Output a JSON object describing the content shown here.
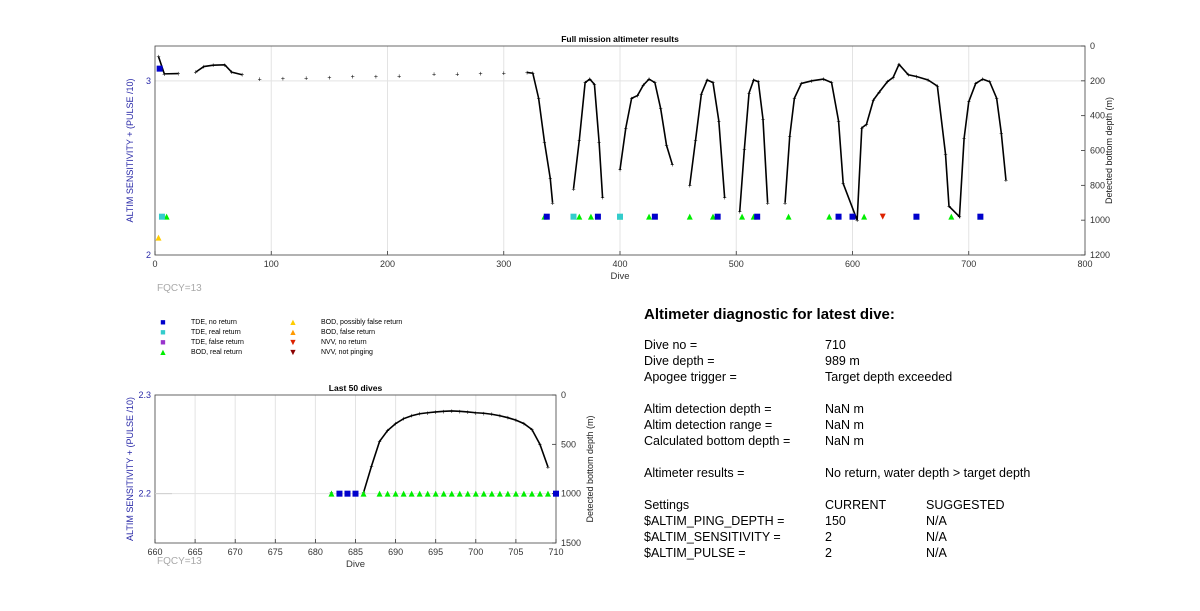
{
  "chart_data": [
    {
      "type": "scatter",
      "title": "Full mission altimeter results",
      "xlabel": "Dive",
      "ylabel_left": "ALTIM SENSITIVITY + (PULSE /10)",
      "ylabel_right": "Detected bottom depth (m)",
      "xlim": [
        0,
        800
      ],
      "ylim_left": [
        2,
        3.2
      ],
      "ylim_right": [
        0,
        1200
      ],
      "right_axis_inverted": true,
      "x_ticks": [
        "0",
        "100",
        "200",
        "300",
        "400",
        "500",
        "600",
        "700",
        "800"
      ],
      "left_ticks": [
        "2",
        "3"
      ],
      "right_ticks": [
        "0",
        "200",
        "400",
        "600",
        "800",
        "1000",
        "1200"
      ],
      "grid": true,
      "annotation": "FQCY=13",
      "series": [
        {
          "name": "Detected bottom depth",
          "color": "#000000",
          "points": [
            [
              3,
              60
            ],
            [
              8,
              160
            ],
            [
              20,
              158
            ],
            [
              35,
              150
            ],
            [
              42,
              118
            ],
            [
              50,
              110
            ],
            [
              60,
              108
            ],
            [
              66,
              150
            ],
            [
              75,
              165
            ],
            [
              90,
              190
            ],
            [
              110,
              188
            ],
            [
              130,
              185
            ],
            [
              150,
              182
            ],
            [
              170,
              176
            ],
            [
              190,
              176
            ],
            [
              210,
              172
            ],
            [
              240,
              162
            ],
            [
              260,
              160
            ],
            [
              280,
              158
            ],
            [
              300,
              156
            ],
            [
              320,
              152
            ],
            [
              325,
              156
            ],
            [
              330,
              300
            ],
            [
              335,
              550
            ],
            [
              340,
              760
            ],
            [
              342,
              900
            ],
            [
              360,
              820
            ],
            [
              365,
              540
            ],
            [
              370,
              210
            ],
            [
              374,
              190
            ],
            [
              378,
              220
            ],
            [
              382,
              550
            ],
            [
              385,
              870
            ],
            [
              400,
              710
            ],
            [
              405,
              470
            ],
            [
              410,
              300
            ],
            [
              415,
              285
            ],
            [
              420,
              225
            ],
            [
              425,
              190
            ],
            [
              430,
              210
            ],
            [
              435,
              360
            ],
            [
              440,
              570
            ],
            [
              445,
              680
            ],
            [
              460,
              800
            ],
            [
              465,
              540
            ],
            [
              470,
              275
            ],
            [
              475,
              195
            ],
            [
              480,
              210
            ],
            [
              485,
              430
            ],
            [
              490,
              870
            ],
            [
              503,
              950
            ],
            [
              507,
              590
            ],
            [
              511,
              270
            ],
            [
              515,
              195
            ],
            [
              519,
              205
            ],
            [
              523,
              420
            ],
            [
              527,
              900
            ],
            [
              542,
              900
            ],
            [
              546,
              520
            ],
            [
              550,
              300
            ],
            [
              556,
              215
            ],
            [
              565,
              200
            ],
            [
              575,
              190
            ],
            [
              582,
              210
            ],
            [
              588,
              430
            ],
            [
              592,
              790
            ],
            [
              604,
              1000
            ],
            [
              608,
              470
            ],
            [
              612,
              450
            ],
            [
              618,
              310
            ],
            [
              623,
              265
            ],
            [
              630,
              205
            ],
            [
              635,
              180
            ],
            [
              640,
              105
            ],
            [
              648,
              165
            ],
            [
              655,
              175
            ],
            [
              665,
              195
            ],
            [
              673,
              230
            ],
            [
              680,
              620
            ],
            [
              683,
              920
            ],
            [
              692,
              980
            ],
            [
              696,
              530
            ],
            [
              700,
              320
            ],
            [
              706,
              215
            ],
            [
              712,
              190
            ],
            [
              718,
              205
            ],
            [
              724,
              300
            ],
            [
              728,
              500
            ],
            [
              732,
              770
            ]
          ]
        },
        {
          "name": "BOD, real return",
          "color": "#00ee00",
          "points": [
            [
              10,
              2.22
            ],
            [
              335,
              2.22
            ],
            [
              365,
              2.22
            ],
            [
              375,
              2.22
            ],
            [
              400,
              2.22
            ],
            [
              425,
              2.22
            ],
            [
              460,
              2.22
            ],
            [
              480,
              2.22
            ],
            [
              505,
              2.22
            ],
            [
              515,
              2.22
            ],
            [
              545,
              2.22
            ],
            [
              580,
              2.22
            ],
            [
              610,
              2.22
            ],
            [
              655,
              2.22
            ],
            [
              685,
              2.22
            ],
            [
              710,
              2.22
            ]
          ]
        },
        {
          "name": "TDE, no return",
          "color": "#0000cc",
          "points": [
            [
              4,
              3.07
            ],
            [
              337,
              2.22
            ],
            [
              381,
              2.22
            ],
            [
              430,
              2.22
            ],
            [
              484,
              2.22
            ],
            [
              518,
              2.22
            ],
            [
              588,
              2.22
            ],
            [
              600,
              2.22
            ],
            [
              655,
              2.22
            ],
            [
              710,
              2.22
            ]
          ]
        },
        {
          "name": "TDE, real return",
          "color": "#33cccc",
          "points": [
            [
              6,
              2.22
            ],
            [
              360,
              2.22
            ],
            [
              400,
              2.22
            ]
          ]
        },
        {
          "name": "BOD, possibly false return",
          "color": "#ffcc00",
          "points": [
            [
              3,
              2.1
            ]
          ]
        },
        {
          "name": "NVV, no return",
          "color": "#dd2200",
          "points": [
            [
              626,
              2.22
            ]
          ]
        }
      ]
    },
    {
      "type": "scatter",
      "title": "Last 50 dives",
      "xlabel": "Dive",
      "ylabel_left": "ALTIM SENSITIVITY + (PULSE /10)",
      "ylabel_right": "Detected bottom depth (m)",
      "xlim": [
        660,
        710
      ],
      "ylim_left": [
        2.15,
        2.3
      ],
      "ylim_right": [
        0,
        1500
      ],
      "right_axis_inverted": true,
      "x_ticks": [
        "660",
        "665",
        "670",
        "675",
        "680",
        "685",
        "690",
        "695",
        "700",
        "705",
        "710"
      ],
      "left_ticks": [
        "2.2",
        "2.3"
      ],
      "right_ticks": [
        "0",
        "500",
        "1000",
        "1500"
      ],
      "grid": true,
      "annotation": "FQCY=13",
      "series": [
        {
          "name": "Detected bottom depth",
          "color": "#000000",
          "points": [
            [
              682,
              990
            ],
            [
              686,
              990
            ],
            [
              687,
              720
            ],
            [
              688,
              470
            ],
            [
              689,
              360
            ],
            [
              690,
              290
            ],
            [
              691,
              240
            ],
            [
              692,
              210
            ],
            [
              693,
              190
            ],
            [
              694,
              180
            ],
            [
              695,
              172
            ],
            [
              696,
              165
            ],
            [
              697,
              162
            ],
            [
              698,
              165
            ],
            [
              699,
              172
            ],
            [
              700,
              180
            ],
            [
              701,
              185
            ],
            [
              702,
              195
            ],
            [
              703,
              210
            ],
            [
              704,
              230
            ],
            [
              705,
              255
            ],
            [
              706,
              290
            ],
            [
              707,
              350
            ],
            [
              708,
              500
            ],
            [
              709,
              730
            ]
          ]
        },
        {
          "name": "TDE, no return",
          "color": "#0000cc",
          "points": [
            [
              683,
              2.2
            ],
            [
              684,
              2.2
            ],
            [
              685,
              2.2
            ],
            [
              710,
              2.2
            ]
          ]
        },
        {
          "name": "BOD, real return",
          "color": "#00ee00",
          "points": [
            [
              682,
              2.2
            ],
            [
              686,
              2.2
            ],
            [
              688,
              2.2
            ],
            [
              689,
              2.2
            ],
            [
              690,
              2.2
            ],
            [
              691,
              2.2
            ],
            [
              692,
              2.2
            ],
            [
              693,
              2.2
            ],
            [
              694,
              2.2
            ],
            [
              695,
              2.2
            ],
            [
              696,
              2.2
            ],
            [
              697,
              2.2
            ],
            [
              698,
              2.2
            ],
            [
              699,
              2.2
            ],
            [
              700,
              2.2
            ],
            [
              701,
              2.2
            ],
            [
              702,
              2.2
            ],
            [
              703,
              2.2
            ],
            [
              704,
              2.2
            ],
            [
              705,
              2.2
            ],
            [
              706,
              2.2
            ],
            [
              707,
              2.2
            ],
            [
              708,
              2.2
            ],
            [
              709,
              2.2
            ]
          ]
        }
      ]
    }
  ],
  "legend": [
    {
      "label": "TDE, no return",
      "symbol": "■",
      "color": "#0000cc"
    },
    {
      "label": "TDE, real return",
      "symbol": "■",
      "color": "#33cccc"
    },
    {
      "label": "TDE, false return",
      "symbol": "■",
      "color": "#9933cc"
    },
    {
      "label": "BOD, real return",
      "symbol": "▲",
      "color": "#00ee00"
    },
    {
      "label": "BOD, possibly false return",
      "symbol": "▲",
      "color": "#ffcc00"
    },
    {
      "label": "BOD, false return",
      "symbol": "▲",
      "color": "#ff9900"
    },
    {
      "label": "NVV, no return",
      "symbol": "▼",
      "color": "#dd2200"
    },
    {
      "label": "NVV, not pinging",
      "symbol": "▼",
      "color": "#8b0000"
    }
  ],
  "diagnostic": {
    "title": "Altimeter diagnostic for latest dive:",
    "dive_no_label": "Dive no =",
    "dive_no_value": "710",
    "dive_depth_label": "Dive depth =",
    "dive_depth_value": "989 m",
    "apogee_label": "Apogee trigger =",
    "apogee_value": "Target depth exceeded",
    "detection_depth_label": "Altim detection depth =",
    "detection_depth_value": "NaN m",
    "detection_range_label": "Altim detection range =",
    "detection_range_value": "NaN m",
    "calc_depth_label": "Calculated bottom depth =",
    "calc_depth_value": "NaN m",
    "results_label": "Altimeter results =",
    "results_value": "No return, water depth > target depth",
    "settings_label": "Settings",
    "current_label": "CURRENT",
    "suggested_label": "SUGGESTED",
    "ping_depth_label": "$ALTIM_PING_DEPTH =",
    "ping_depth_current": "150",
    "ping_depth_suggested": "N/A",
    "sensitivity_label": "$ALTIM_SENSITIVITY =",
    "sensitivity_current": "2",
    "sensitivity_suggested": "N/A",
    "pulse_label": "$ALTIM_PULSE =",
    "pulse_current": "2",
    "pulse_suggested": "N/A"
  }
}
